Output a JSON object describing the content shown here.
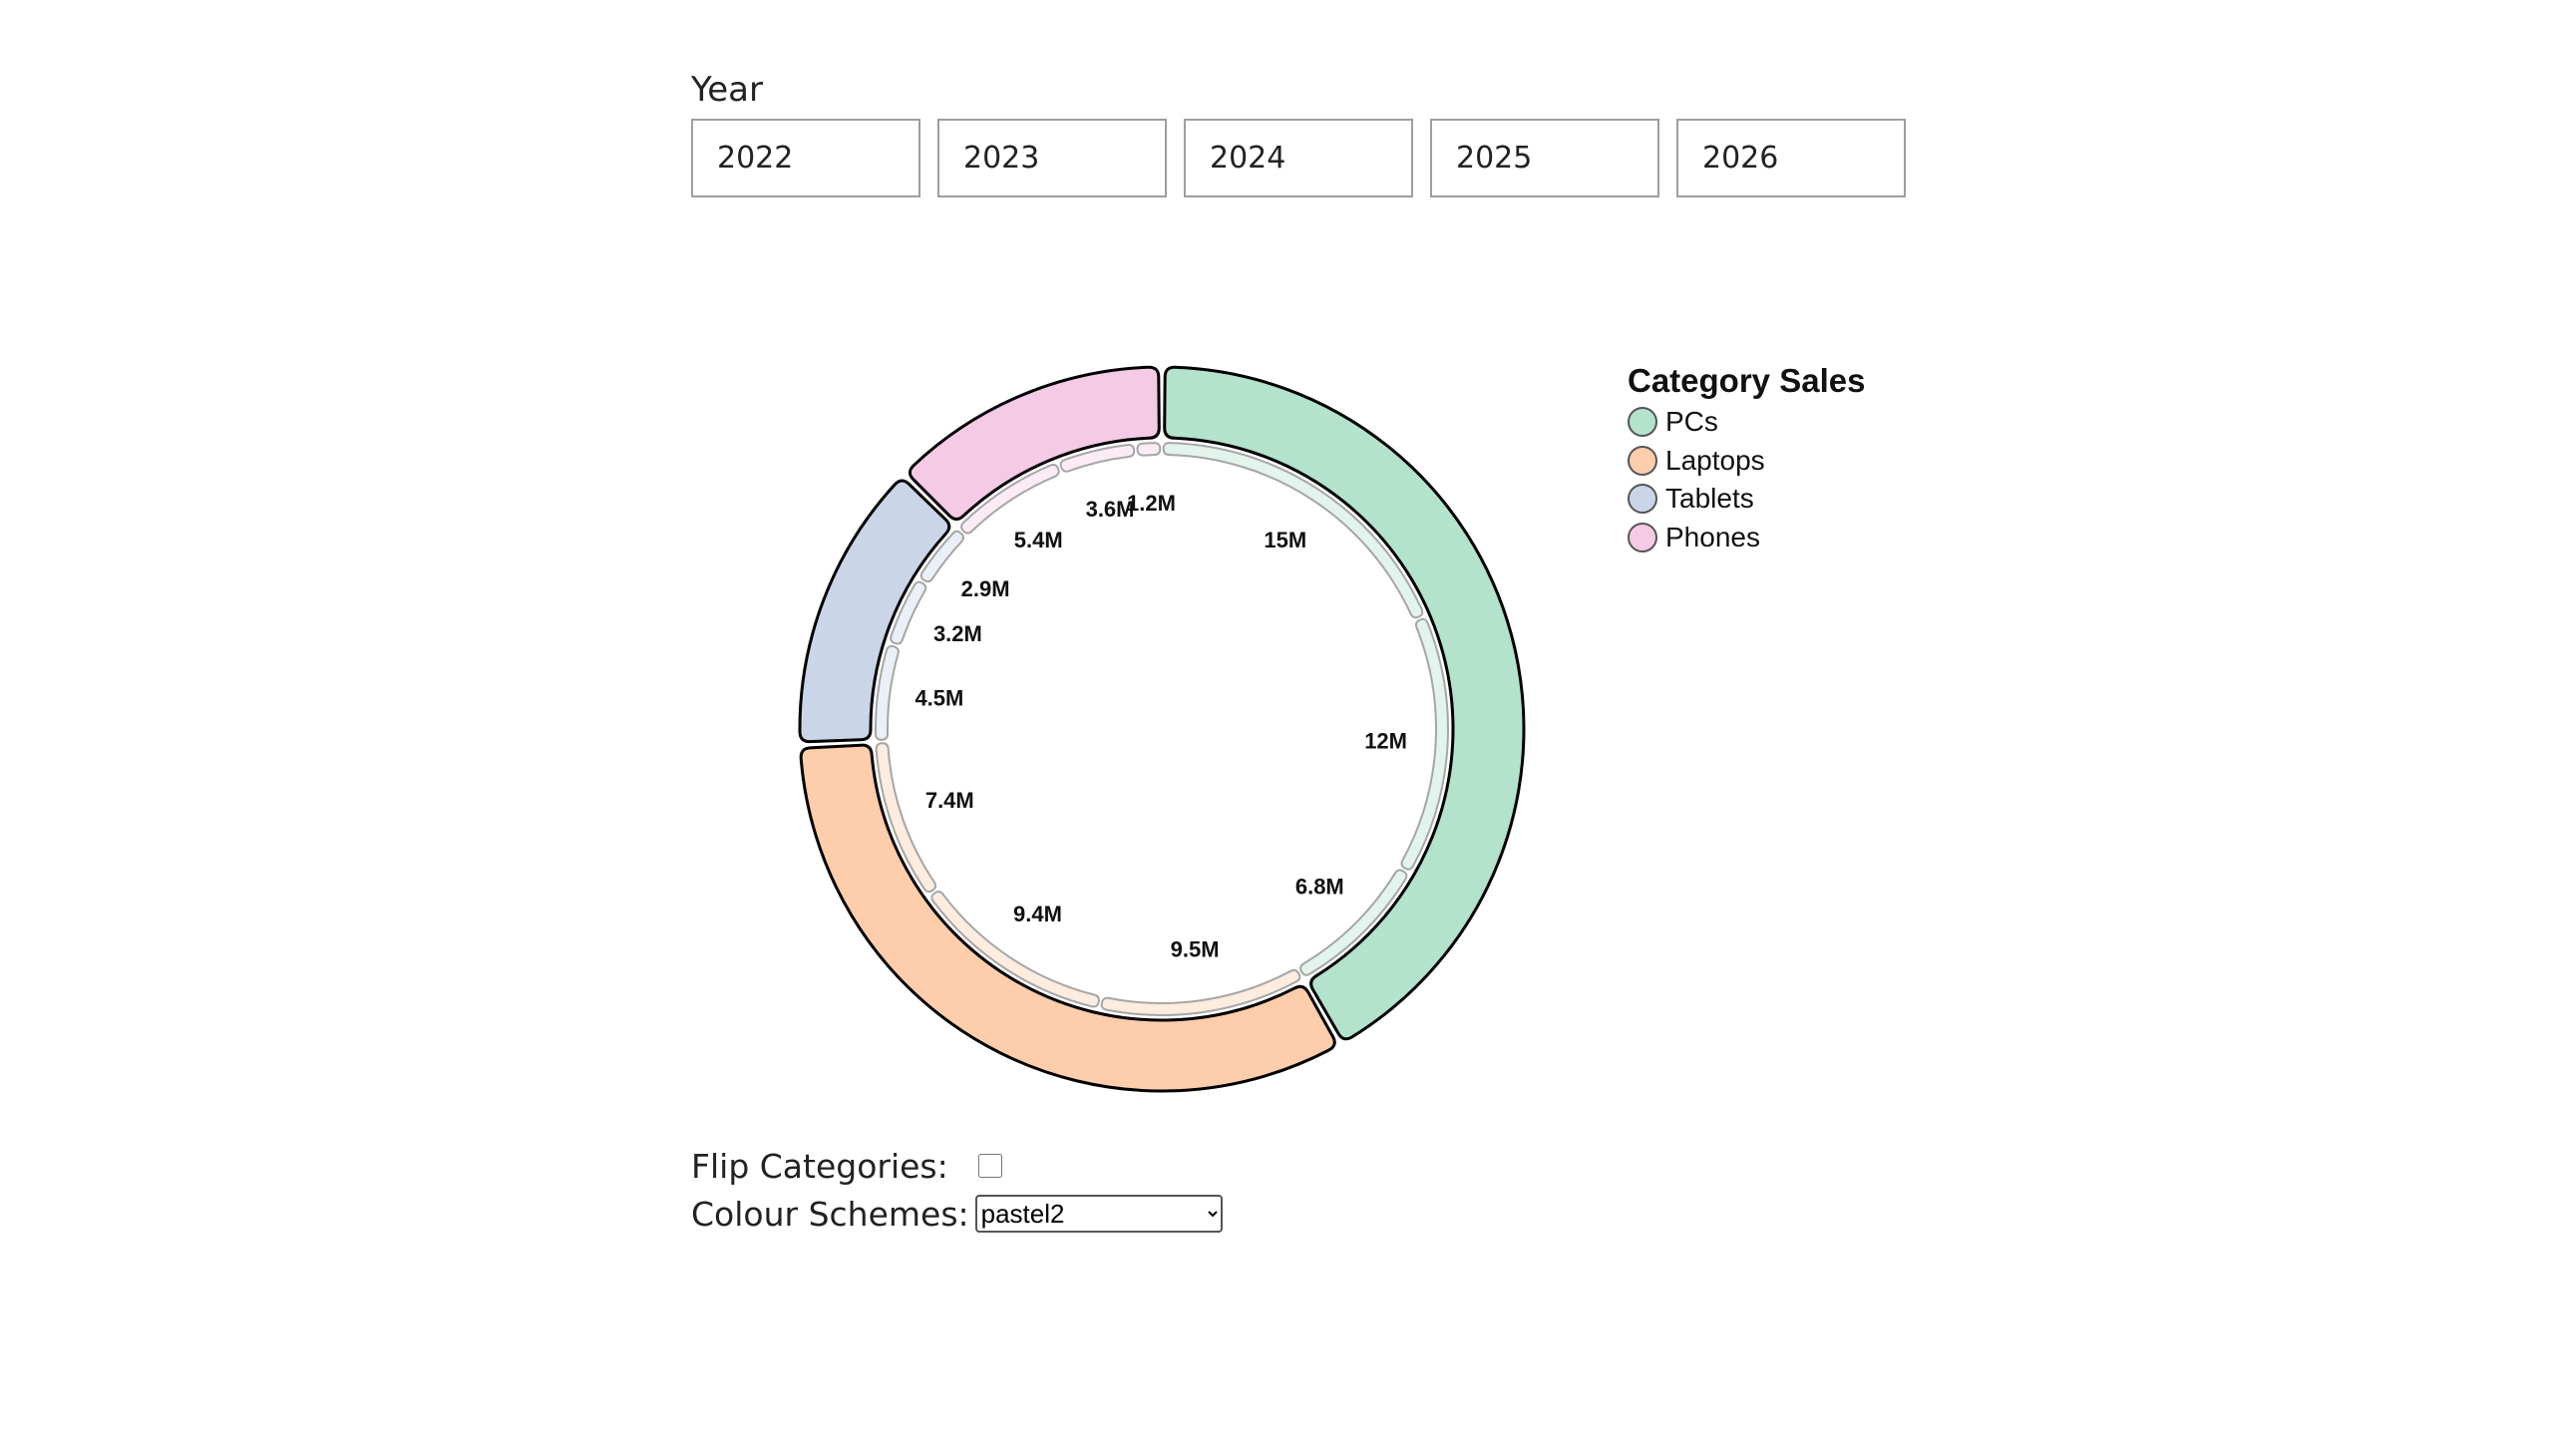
{
  "year_selector": {
    "label": "Year",
    "years": [
      "2022",
      "2023",
      "2024",
      "2025",
      "2026"
    ]
  },
  "controls": {
    "flip_label": "Flip Categories:",
    "flip_checked": false,
    "scheme_label": "Colour Schemes:",
    "scheme_value": "pastel2"
  },
  "chart_data": {
    "type": "pie",
    "variant": "nested-donut",
    "legend_title": "Category Sales",
    "legend_position": "right",
    "colors": {
      "PCs": "#b3e2cd",
      "Laptops": "#fdcdac",
      "Tablets": "#cbd5e8",
      "Phones": "#f4cae4"
    },
    "categories": [
      {
        "name": "PCs",
        "sub_values": [
          15,
          12,
          6.8
        ],
        "sub_labels": [
          "15M",
          "12M",
          "6.8M"
        ]
      },
      {
        "name": "Laptops",
        "sub_values": [
          9.5,
          9.4,
          7.4
        ],
        "sub_labels": [
          "9.5M",
          "9.4M",
          "7.4M"
        ]
      },
      {
        "name": "Tablets",
        "sub_values": [
          4.5,
          3.2,
          2.9
        ],
        "sub_labels": [
          "4.5M",
          "3.2M",
          "2.9M"
        ]
      },
      {
        "name": "Phones",
        "sub_values": [
          5.4,
          3.6,
          1.2
        ],
        "sub_labels": [
          "5.4M",
          "3.6M",
          "1.2M"
        ]
      }
    ]
  }
}
